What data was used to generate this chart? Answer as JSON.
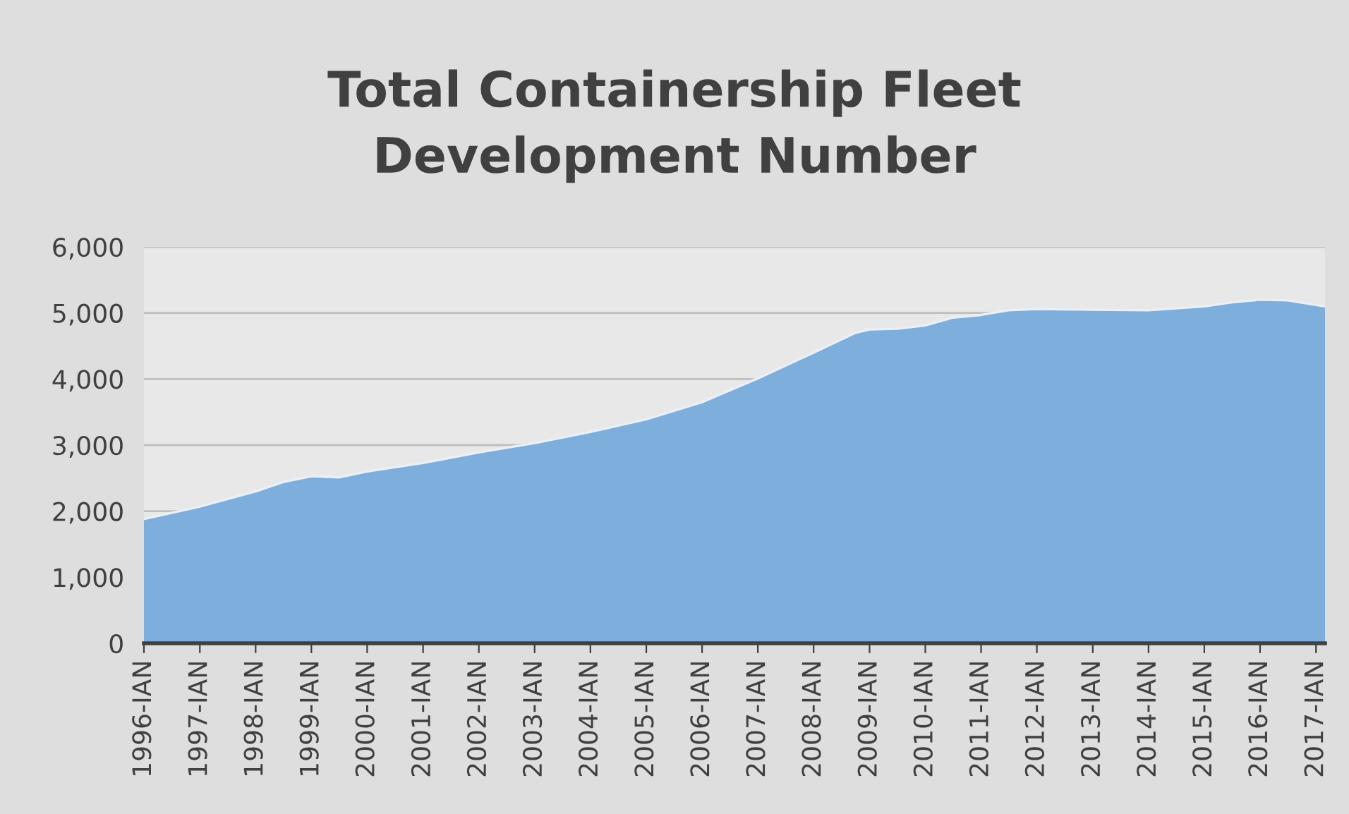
{
  "chart_data": {
    "type": "area",
    "title": "Total Containership Fleet\nDevelopment Number",
    "x": [
      "1996-01",
      "1997-01",
      "1998-01",
      "1998-07",
      "1999-01",
      "1999-07",
      "2000-01",
      "2001-01",
      "2002-01",
      "2003-01",
      "2004-01",
      "2005-01",
      "2006-01",
      "2007-01",
      "2008-01",
      "2008-10",
      "2009-01",
      "2009-07",
      "2010-01",
      "2010-07",
      "2011-01",
      "2011-07",
      "2012-01",
      "2013-01",
      "2014-01",
      "2015-01",
      "2015-07",
      "2016-01",
      "2016-07",
      "2017-01",
      "2017-03"
    ],
    "series": [
      {
        "color": "#7eaedb",
        "values": [
          1880,
          2070,
          2300,
          2440,
          2530,
          2510,
          2600,
          2730,
          2890,
          3030,
          3200,
          3390,
          3650,
          4010,
          4400,
          4700,
          4750,
          4760,
          4810,
          4930,
          4970,
          5040,
          5060,
          5050,
          5040,
          5100,
          5160,
          5200,
          5190,
          5120,
          5100
        ]
      }
    ],
    "xlim": [
      "1996-01",
      "2017-03"
    ],
    "xticks": [
      {
        "value": "1996-01",
        "label": "1996-IAN"
      },
      {
        "value": "1997-01",
        "label": "1997-IAN"
      },
      {
        "value": "1998-01",
        "label": "1998-IAN"
      },
      {
        "value": "1999-01",
        "label": "1999-IAN"
      },
      {
        "value": "2000-01",
        "label": "2000-IAN"
      },
      {
        "value": "2001-01",
        "label": "2001-IAN"
      },
      {
        "value": "2002-01",
        "label": "2002-IAN"
      },
      {
        "value": "2003-01",
        "label": "2003-IAN"
      },
      {
        "value": "2004-01",
        "label": "2004-IAN"
      },
      {
        "value": "2005-01",
        "label": "2005-IAN"
      },
      {
        "value": "2006-01",
        "label": "2006-IAN"
      },
      {
        "value": "2007-01",
        "label": "2007-IAN"
      },
      {
        "value": "2008-01",
        "label": "2008-IAN"
      },
      {
        "value": "2009-01",
        "label": "2009-IAN"
      },
      {
        "value": "2010-01",
        "label": "2010-IAN"
      },
      {
        "value": "2011-01",
        "label": "2011-IAN"
      },
      {
        "value": "2012-01",
        "label": "2012-IAN"
      },
      {
        "value": "2013-01",
        "label": "2013-IAN"
      },
      {
        "value": "2014-01",
        "label": "2014-IAN"
      },
      {
        "value": "2015-01",
        "label": "2015-IAN"
      },
      {
        "value": "2016-01",
        "label": "2016-IAN"
      },
      {
        "value": "2017-01",
        "label": "2017-IAN"
      }
    ],
    "ylim": [
      0,
      6000
    ],
    "yticks": [
      {
        "value": 0,
        "label": "0"
      },
      {
        "value": 1000,
        "label": "1,000"
      },
      {
        "value": 2000,
        "label": "2,000"
      },
      {
        "value": 3000,
        "label": "3,000"
      },
      {
        "value": 4000,
        "label": "4,000"
      },
      {
        "value": 5000,
        "label": "5,000"
      },
      {
        "value": 6000,
        "label": "6,000"
      }
    ],
    "grid": "y"
  }
}
